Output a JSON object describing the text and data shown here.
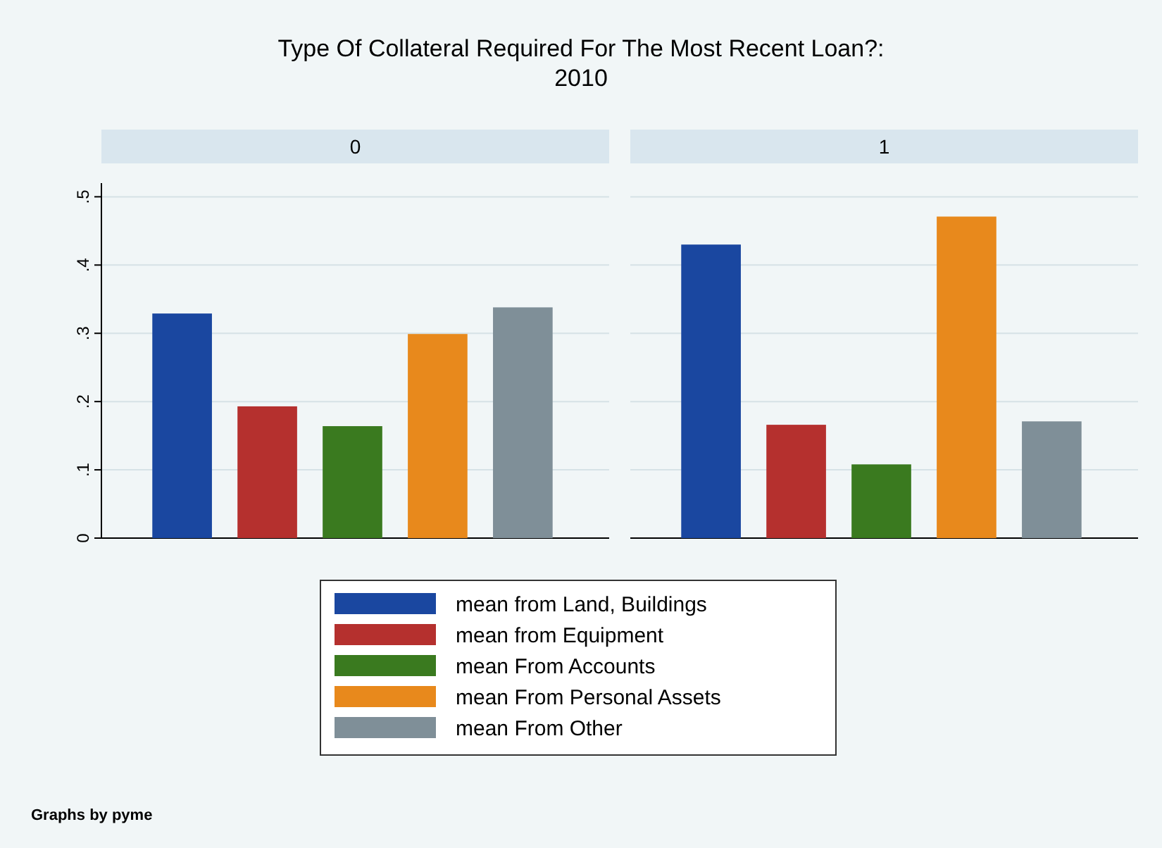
{
  "chart_data": {
    "type": "bar",
    "title": "Type Of Collateral Required For The Most Recent Loan?: 2010",
    "categories": [
      "0",
      "1"
    ],
    "series": [
      {
        "name": "mean from Land, Buildings",
        "color": "#1a47a0",
        "values": [
          0.329,
          0.43
        ]
      },
      {
        "name": "mean from Equipment",
        "color": "#b5302e",
        "values": [
          0.193,
          0.166
        ]
      },
      {
        "name": "mean From Accounts",
        "color": "#3a7a1f",
        "values": [
          0.164,
          0.108
        ]
      },
      {
        "name": "mean From Personal Assets",
        "color": "#e8891c",
        "values": [
          0.299,
          0.471
        ]
      },
      {
        "name": "mean From Other",
        "color": "#7f8f98",
        "values": [
          0.338,
          0.171
        ]
      }
    ],
    "ylim": [
      0,
      0.52
    ],
    "yticks": [
      0,
      {
        "value": 0.1,
        "label": ".1"
      },
      {
        "value": 0.2,
        "label": ".2"
      },
      {
        "value": 0.3,
        "label": ".3"
      },
      {
        "value": 0.4,
        "label": ".4"
      },
      {
        "value": 0.5,
        "label": ".5"
      }
    ],
    "grid": "y",
    "legend": "bottom",
    "annotations": [
      "Graphs by pyme"
    ]
  }
}
